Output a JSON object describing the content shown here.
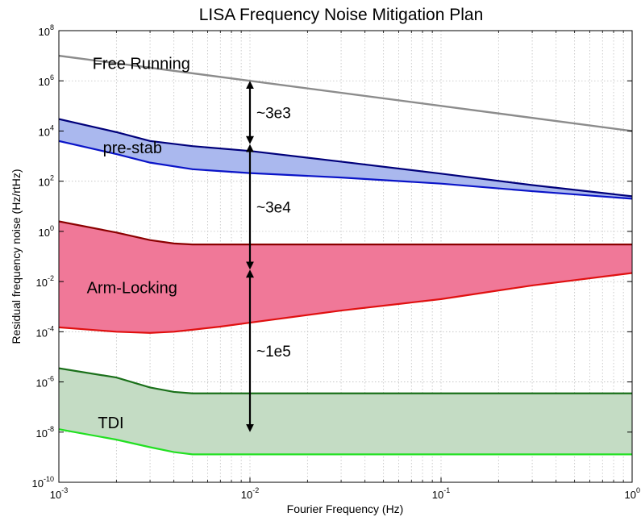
{
  "chart_data": {
    "type": "area",
    "title": "LISA Frequency Noise Mitigation Plan",
    "xlabel": "Fourier Frequency (Hz)",
    "ylabel": "Residual frequency noise (Hz/rtHz)",
    "xscale": "log",
    "yscale": "log",
    "xlim": [
      0.001,
      1
    ],
    "ylim": [
      1e-10,
      100000000.0
    ],
    "grid": true,
    "x_ticks": [
      {
        "base": "10",
        "exp": "-3",
        "value": 0.001
      },
      {
        "base": "10",
        "exp": "-2",
        "value": 0.01
      },
      {
        "base": "10",
        "exp": "-1",
        "value": 0.1
      },
      {
        "base": "10",
        "exp": "0",
        "value": 1
      }
    ],
    "y_ticks": [
      {
        "base": "10",
        "exp": "8",
        "value": 100000000.0
      },
      {
        "base": "10",
        "exp": "6",
        "value": 1000000.0
      },
      {
        "base": "10",
        "exp": "4",
        "value": 10000.0
      },
      {
        "base": "10",
        "exp": "2",
        "value": 100.0
      },
      {
        "base": "10",
        "exp": "0",
        "value": 1
      },
      {
        "base": "10",
        "exp": "-2",
        "value": 0.01
      },
      {
        "base": "10",
        "exp": "-4",
        "value": 0.0001
      },
      {
        "base": "10",
        "exp": "-6",
        "value": 1e-06
      },
      {
        "base": "10",
        "exp": "-8",
        "value": 1e-08
      },
      {
        "base": "10",
        "exp": "-10",
        "value": 1e-10
      }
    ],
    "series": [
      {
        "name": "Free Running",
        "color": "#8c8c8c",
        "x": [
          0.001,
          1
        ],
        "y": [
          10000000.0,
          10000.0
        ]
      },
      {
        "name": "pre-stab",
        "upper_color": "#00007a",
        "lower_color": "#0a14c8",
        "fill": "#aab8ee",
        "x": [
          0.001,
          0.002,
          0.003,
          0.005,
          0.01,
          0.03,
          0.1,
          0.3,
          1
        ],
        "y_upper": [
          30000,
          9000,
          4000,
          2500,
          1600,
          600,
          200,
          70,
          25
        ],
        "y_lower": [
          4000,
          1200,
          550,
          300,
          210,
          140,
          80,
          40,
          20
        ]
      },
      {
        "name": "Arm-Locking",
        "upper_color": "#8b0000",
        "lower_color": "#e01010",
        "fill": "#f07898",
        "x": [
          0.001,
          0.002,
          0.003,
          0.004,
          0.005,
          0.007,
          0.01,
          0.03,
          0.1,
          0.3,
          1
        ],
        "y_upper": [
          2.5,
          0.9,
          0.45,
          0.33,
          0.3,
          0.3,
          0.3,
          0.3,
          0.3,
          0.3,
          0.3
        ],
        "y_lower": [
          0.00015,
          0.0001,
          9e-05,
          0.0001,
          0.00012,
          0.00016,
          0.00023,
          0.0007,
          0.002,
          0.007,
          0.022
        ]
      },
      {
        "name": "TDI",
        "upper_color": "#1a701a",
        "lower_color": "#22e022",
        "fill": "#c4dcc4",
        "x": [
          0.001,
          0.002,
          0.003,
          0.004,
          0.005,
          1
        ],
        "y_upper": [
          3.5e-06,
          1.5e-06,
          6e-07,
          4e-07,
          3.5e-07,
          3.5e-07
        ],
        "y_lower": [
          1.3e-08,
          5e-09,
          2.5e-09,
          1.6e-09,
          1.3e-09,
          1.3e-09
        ]
      }
    ],
    "annotations": [
      {
        "text": "~3e3",
        "arrow_x": 0.01,
        "from": 1000000.0,
        "to": 3000
      },
      {
        "text": "~3e4",
        "arrow_x": 0.01,
        "from": 3000,
        "to": 0.03
      },
      {
        "text": "~1e5",
        "arrow_x": 0.01,
        "from": 0.03,
        "to": 1e-08
      }
    ]
  }
}
